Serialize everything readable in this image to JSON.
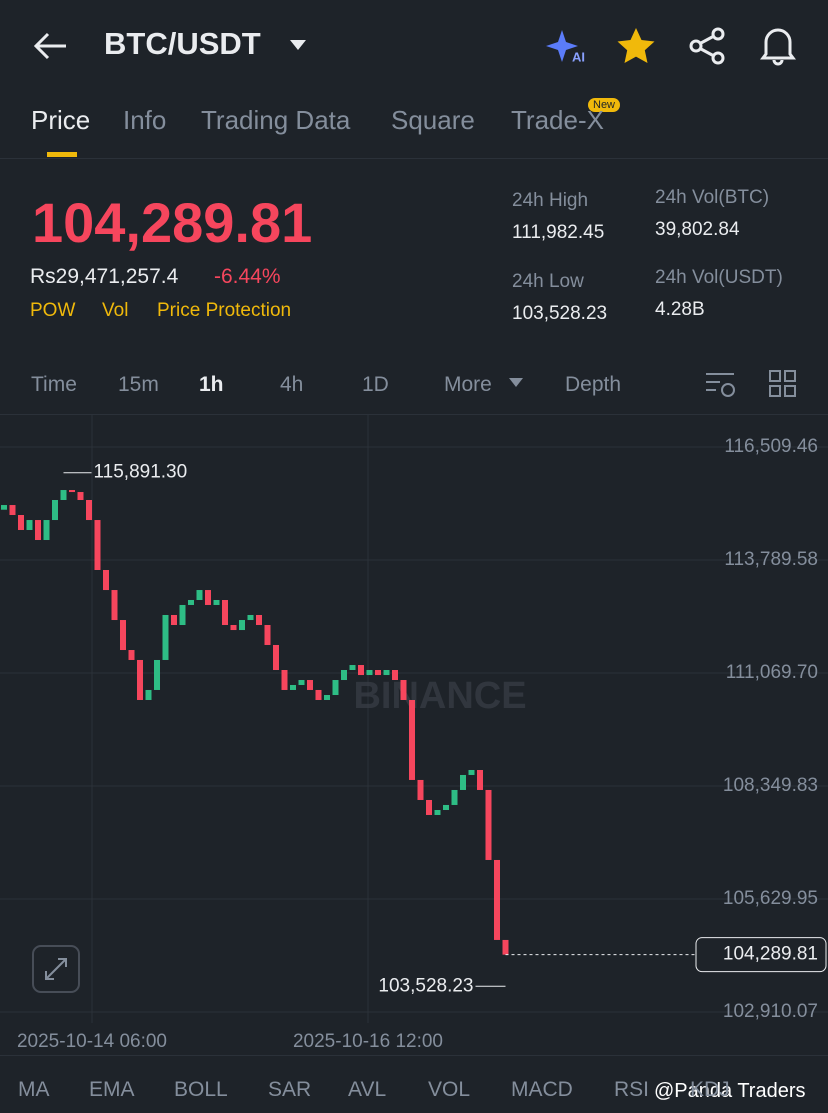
{
  "header": {
    "pair": "BTC/USDT"
  },
  "tabs": [
    "Price",
    "Info",
    "Trading Data",
    "Square",
    "Trade-X"
  ],
  "tab_badge": "New",
  "price": {
    "last": "104,289.81",
    "local": "Rs29,471,257.4",
    "change": "-6.44%",
    "tags": [
      "POW",
      "Vol",
      "Price Protection"
    ]
  },
  "stats": [
    {
      "label": "24h High",
      "value": "111,982.45"
    },
    {
      "label": "24h Vol(BTC)",
      "value": "39,802.84"
    },
    {
      "label": "24h Low",
      "value": "103,528.23"
    },
    {
      "label": "24h Vol(USDT)",
      "value": "4.28B"
    }
  ],
  "intervals": [
    "Time",
    "15m",
    "1h",
    "4h",
    "1D",
    "More",
    "Depth"
  ],
  "chart_data": {
    "type": "candlestick",
    "watermark": "BINANCE",
    "up_color": "#2ebd85",
    "down_color": "#f6465d",
    "ylim": [
      102645,
      117280
    ],
    "yticks": [
      {
        "value": 116509.46,
        "label": "116,509.46"
      },
      {
        "value": 113789.58,
        "label": "113,789.58"
      },
      {
        "value": 111069.7,
        "label": "111,069.70"
      },
      {
        "value": 108349.83,
        "label": "108,349.83"
      },
      {
        "value": 105629.95,
        "label": "105,629.95"
      },
      {
        "value": 102910.07,
        "label": "102,910.07"
      }
    ],
    "x_labels": [
      "2025-10-14 06:00",
      "2025-10-16 12:00"
    ],
    "open": [
      115000,
      115113,
      114873,
      114512,
      114752,
      114271,
      114752,
      115234,
      115474,
      115426,
      115234,
      114752,
      113549,
      113067,
      112345,
      111623,
      111383,
      110420,
      110661,
      111383,
      112466,
      112225,
      112707,
      112827,
      113067,
      112707,
      112827,
      112225,
      112104,
      112345,
      112466,
      112225,
      111744,
      111142,
      110661,
      110781,
      110901,
      110661,
      110420,
      110540,
      110901,
      111142,
      111262,
      111021,
      111142,
      111021,
      111142,
      110901,
      110420,
      108495,
      108013,
      107652,
      107772,
      107893,
      108254,
      108615,
      108735,
      108254,
      106569,
      104644
    ],
    "close": [
      115113,
      114873,
      114512,
      114752,
      114271,
      114752,
      115234,
      115474,
      115426,
      115234,
      114752,
      113549,
      113067,
      112345,
      111623,
      111383,
      110420,
      110661,
      111383,
      112466,
      112225,
      112707,
      112827,
      113067,
      112707,
      112827,
      112225,
      112104,
      112345,
      112466,
      112225,
      111744,
      111142,
      110661,
      110781,
      110901,
      110661,
      110420,
      110540,
      110901,
      111142,
      111262,
      111021,
      111142,
      111021,
      111142,
      110901,
      110420,
      108495,
      108013,
      107652,
      107772,
      107893,
      108254,
      108615,
      108735,
      108254,
      106569,
      104644,
      104289.81
    ],
    "high_marker": {
      "value": 115891.3,
      "label": "115,891.30"
    },
    "low_marker": {
      "value": 103528.23,
      "label": "103,528.23"
    },
    "last_price": {
      "value": 104289.81,
      "label": "104,289.81"
    }
  },
  "indicators": [
    "MA",
    "EMA",
    "BOLL",
    "SAR",
    "AVL",
    "VOL",
    "MACD",
    "RSI",
    "KDJ"
  ],
  "credit": "@Panda Traders"
}
